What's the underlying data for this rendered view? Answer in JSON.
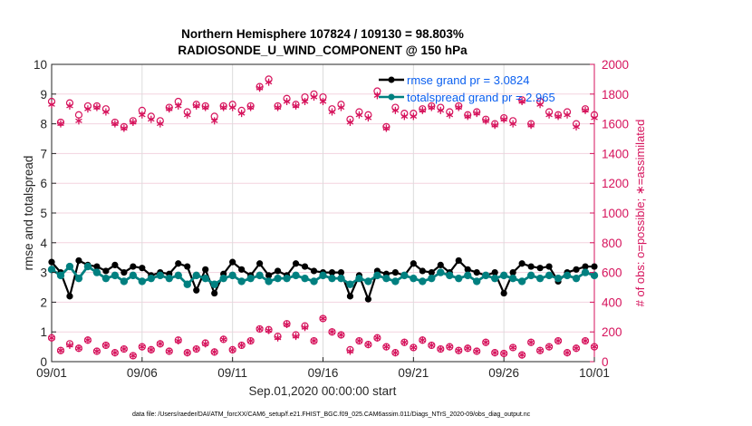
{
  "chart_data": {
    "type": "line",
    "title": [
      "Northern Hemisphere 107824 / 109130 = 98.803%",
      "RADIOSONDE_U_WIND_COMPONENT @ 150 hPa"
    ],
    "xlabel": "Sep.01,2020 00:00:00 start",
    "ylabel": "rmse and totalspread",
    "y2label": "# of obs: o=possible; ∗=assimilated",
    "x_ticks": [
      "09/01",
      "09/06",
      "09/11",
      "09/16",
      "09/21",
      "09/26",
      "10/01"
    ],
    "xlim_days": [
      0,
      30
    ],
    "ylim": [
      0,
      10
    ],
    "y_ticks": [
      "0",
      "1",
      "2",
      "3",
      "4",
      "5",
      "6",
      "7",
      "8",
      "9",
      "10"
    ],
    "y2lim": [
      0,
      2000
    ],
    "y2_ticks": [
      "0",
      "200",
      "400",
      "600",
      "800",
      "1000",
      "1200",
      "1400",
      "1600",
      "1800",
      "2000"
    ],
    "x_step_days": 0.5,
    "legend_position": "top-right",
    "series": [
      {
        "name": "rmse grand pr = 3.0824",
        "axis": "left",
        "color": "#000000",
        "values": [
          3.35,
          3.0,
          2.2,
          3.4,
          3.25,
          3.2,
          3.05,
          3.25,
          3.0,
          3.2,
          3.15,
          2.9,
          3.0,
          2.95,
          3.3,
          3.2,
          2.4,
          3.1,
          2.3,
          2.95,
          3.35,
          3.1,
          2.9,
          3.3,
          2.9,
          3.05,
          2.9,
          3.3,
          3.2,
          3.05,
          3.0,
          3.0,
          3.0,
          2.2,
          2.9,
          2.1,
          3.05,
          2.95,
          3.0,
          2.9,
          3.3,
          3.05,
          3.0,
          3.25,
          3.0,
          3.4,
          3.1,
          3.0,
          2.9,
          3.0,
          2.3,
          3.0,
          3.3,
          3.2,
          3.15,
          3.2,
          2.7,
          3.0,
          3.1,
          3.2,
          3.2
        ]
      },
      {
        "name": "totalspread grand pr = 2.965",
        "axis": "left",
        "color": "#008080",
        "values": [
          3.1,
          2.9,
          3.2,
          2.8,
          3.2,
          3.0,
          2.8,
          2.9,
          2.7,
          2.9,
          2.7,
          2.8,
          2.9,
          2.8,
          2.9,
          2.6,
          2.9,
          2.8,
          2.6,
          2.8,
          2.9,
          2.7,
          2.8,
          2.9,
          2.7,
          2.8,
          2.8,
          2.9,
          2.8,
          2.7,
          2.9,
          2.8,
          2.8,
          2.6,
          2.8,
          2.7,
          2.9,
          2.8,
          2.7,
          2.9,
          2.8,
          2.7,
          2.8,
          3.0,
          2.9,
          2.8,
          2.9,
          2.7,
          2.9,
          2.8,
          2.9,
          2.8,
          2.7,
          2.9,
          2.8,
          2.9,
          2.8,
          2.9,
          2.8,
          3.0,
          2.9
        ]
      },
      {
        "name": "possible",
        "axis": "right",
        "marker": "o",
        "color": "#d6135c",
        "values": [
          1750,
          1610,
          1740,
          1660,
          1720,
          1720,
          1700,
          1610,
          1580,
          1620,
          1690,
          1650,
          1620,
          1710,
          1750,
          1680,
          1730,
          1720,
          1650,
          1720,
          1730,
          1690,
          1720,
          1850,
          1900,
          1720,
          1770,
          1730,
          1780,
          1800,
          1780,
          1700,
          1730,
          1630,
          1680,
          1660,
          1820,
          1580,
          1710,
          1670,
          1670,
          1700,
          1720,
          1710,
          1680,
          1720,
          1660,
          1680,
          1630,
          1600,
          1640,
          1620,
          1760,
          1600,
          1750,
          1680,
          1660,
          1680,
          1600,
          1700,
          1660
        ]
      },
      {
        "name": "assimilated",
        "axis": "right",
        "marker": "*",
        "color": "#d6135c",
        "values": [
          1730,
          1600,
          1720,
          1620,
          1700,
          1710,
          1680,
          1600,
          1570,
          1610,
          1660,
          1630,
          1600,
          1700,
          1720,
          1660,
          1720,
          1710,
          1620,
          1710,
          1710,
          1670,
          1710,
          1840,
          1880,
          1710,
          1750,
          1720,
          1750,
          1780,
          1750,
          1680,
          1710,
          1610,
          1660,
          1640,
          1790,
          1570,
          1690,
          1650,
          1650,
          1690,
          1710,
          1690,
          1660,
          1710,
          1650,
          1670,
          1620,
          1590,
          1630,
          1600,
          1750,
          1590,
          1730,
          1660,
          1650,
          1660,
          1580,
          1690,
          1640
        ]
      },
      {
        "name": "possible_low",
        "axis": "right",
        "marker": "o",
        "color": "#d6135c",
        "values": [
          160,
          75,
          120,
          90,
          145,
          70,
          110,
          60,
          85,
          40,
          100,
          80,
          120,
          70,
          145,
          60,
          85,
          125,
          65,
          150,
          80,
          110,
          140,
          220,
          215,
          170,
          255,
          180,
          240,
          140,
          290,
          200,
          180,
          80,
          140,
          115,
          160,
          100,
          60,
          130,
          95,
          145,
          110,
          85,
          100,
          75,
          90,
          70,
          130,
          60,
          55,
          95,
          45,
          130,
          75,
          100,
          140,
          60,
          90,
          140,
          100
        ]
      },
      {
        "name": "assimilated_low",
        "axis": "right",
        "marker": "*",
        "color": "#d6135c",
        "values": [
          160,
          75,
          110,
          90,
          145,
          70,
          110,
          60,
          85,
          40,
          100,
          80,
          120,
          70,
          140,
          60,
          85,
          120,
          65,
          150,
          80,
          110,
          140,
          220,
          210,
          160,
          250,
          170,
          230,
          140,
          290,
          200,
          180,
          70,
          140,
          115,
          160,
          100,
          60,
          130,
          95,
          145,
          110,
          85,
          100,
          75,
          90,
          70,
          130,
          60,
          55,
          95,
          45,
          130,
          75,
          100,
          140,
          60,
          90,
          140,
          100
        ]
      }
    ]
  },
  "footer": "data file: /Users/raeder/DAI/ATM_forcXX/CAM6_setup/f.e21.FHIST_BGC.f09_025.CAM6assim.011/Diags_NTrS_2020-09/obs_diag_output.nc"
}
